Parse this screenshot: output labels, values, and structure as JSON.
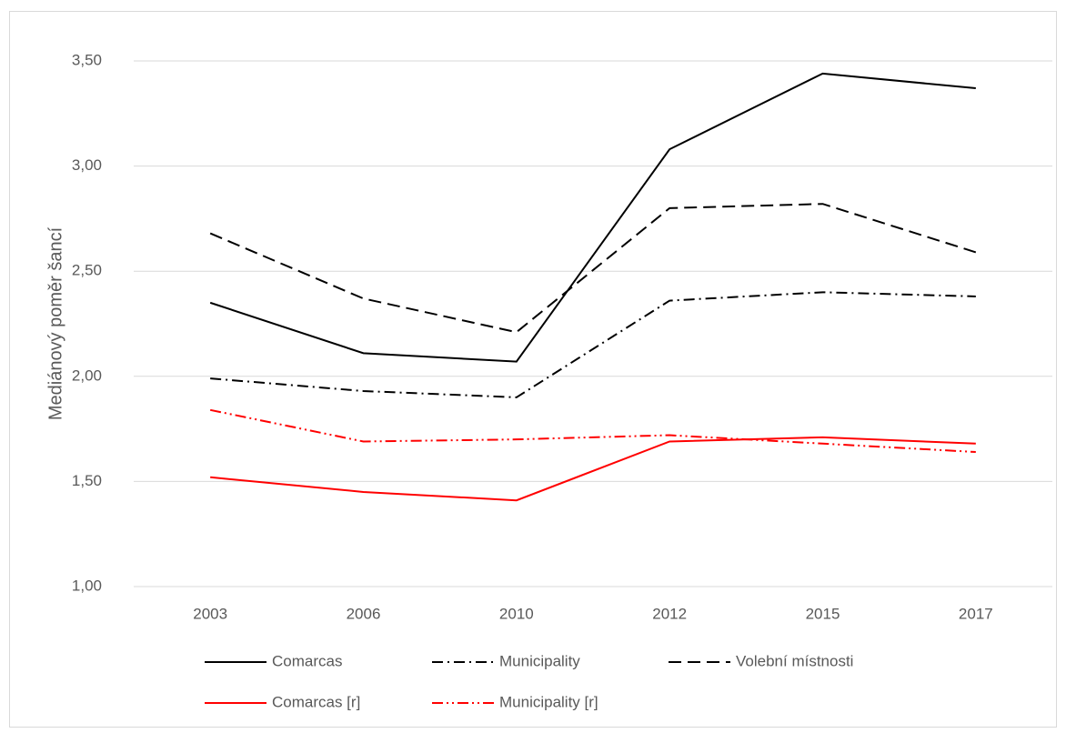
{
  "chart_data": {
    "type": "line",
    "y_label": "Mediánový poměr šancí",
    "categories": [
      "2003",
      "2006",
      "2010",
      "2012",
      "2015",
      "2017"
    ],
    "series": [
      {
        "name": "Comarcas",
        "color": "#000000",
        "dash": "solid",
        "values": [
          2.35,
          2.11,
          2.07,
          3.08,
          3.44,
          3.37
        ]
      },
      {
        "name": "Municipality",
        "color": "#000000",
        "dash": "dashdot",
        "values": [
          1.99,
          1.93,
          1.9,
          2.36,
          2.4,
          2.38
        ]
      },
      {
        "name": "Volební místnosti",
        "color": "#000000",
        "dash": "dashed",
        "values": [
          2.68,
          2.37,
          2.21,
          2.8,
          2.82,
          2.59
        ]
      },
      {
        "name": "Comarcas [r]",
        "color": "#ff0000",
        "dash": "solid",
        "values": [
          1.52,
          1.45,
          1.41,
          1.69,
          1.71,
          1.68
        ]
      },
      {
        "name": "Municipality [r]",
        "color": "#ff0000",
        "dash": "dashdotdot",
        "values": [
          1.84,
          1.69,
          1.7,
          1.72,
          1.68,
          1.64
        ]
      }
    ],
    "ylim": [
      1,
      3.5
    ],
    "yticks": [
      {
        "value": 1,
        "label": "1,00"
      },
      {
        "value": 1.5,
        "label": "1,50"
      },
      {
        "value": 2,
        "label": "2,00"
      },
      {
        "value": 2.5,
        "label": "2,50"
      },
      {
        "value": 3,
        "label": "3,00"
      },
      {
        "value": 3.5,
        "label": "3,50"
      }
    ],
    "grid": true,
    "legend": "bottom"
  }
}
